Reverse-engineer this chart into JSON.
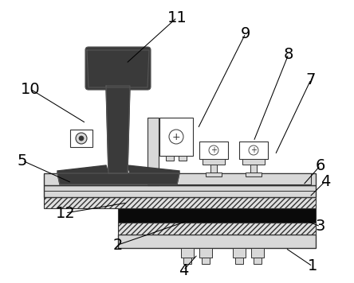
{
  "fig_width": 4.44,
  "fig_height": 3.56,
  "dpi": 100,
  "bg_color": "#ffffff",
  "rail_color": "#3a3a3a",
  "dark_gray": "#333333",
  "light_gray": "#d8d8d8",
  "white": "#ffffff",
  "black": "#111111",
  "hatch_bg": "#e0e0e0"
}
